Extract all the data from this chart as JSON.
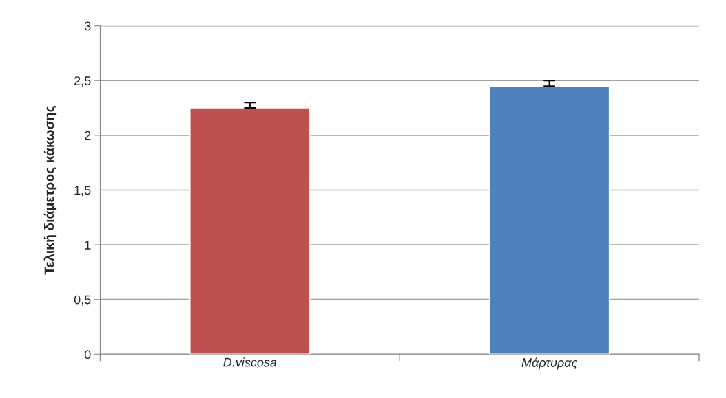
{
  "chart_data": {
    "type": "bar",
    "ylabel": "Τελική διάμετρος κάκωσης",
    "categories": [
      "D.viscosa",
      "Μάρτυρας"
    ],
    "values": [
      2.25,
      2.45
    ],
    "colors": [
      "#c0504d",
      "#4f81bd"
    ],
    "errors": [
      [
        2.25,
        2.3
      ],
      [
        2.45,
        2.5
      ]
    ],
    "ylim": [
      0,
      3
    ],
    "yticks": [
      0,
      {
        "value": 0.5,
        "label": "0,5"
      },
      1,
      {
        "value": 1.5,
        "label": "1,5"
      },
      2,
      {
        "value": 2.5,
        "label": "2,5"
      },
      3
    ],
    "grid": "y",
    "legend": false
  }
}
